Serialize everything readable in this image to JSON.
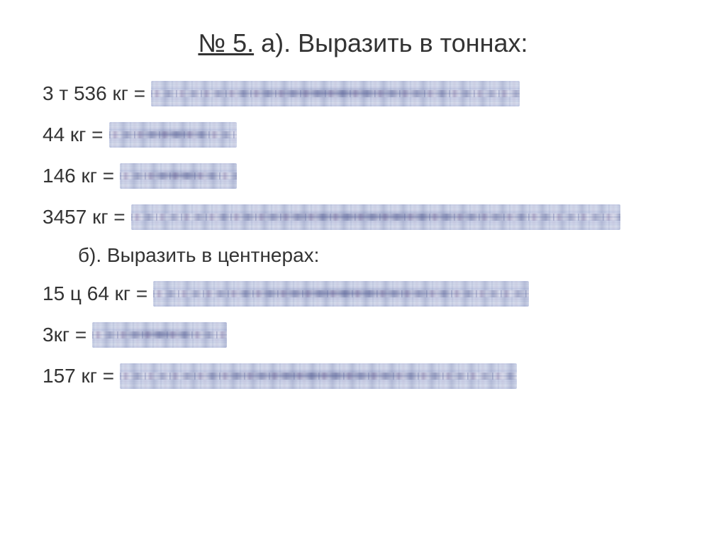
{
  "header": {
    "number": "№ 5.",
    "text": " а). Выразить в тоннах:"
  },
  "section_a": {
    "rows": [
      {
        "label": "3 т  536 кг  =",
        "blur_width": 520
      },
      {
        "label": "44 кг  =",
        "blur_width": 180
      },
      {
        "label": "146 кг  =",
        "blur_width": 165
      },
      {
        "label": "3457 кг =",
        "blur_width": 690
      }
    ]
  },
  "subtitle_b": "б). Выразить в центнерах:",
  "section_b": {
    "rows": [
      {
        "label": "15 ц 64 кг   =",
        "blur_width": 530
      },
      {
        "label": "3кг  =",
        "blur_width": 190
      },
      {
        "label": "157 кг =",
        "blur_width": 560
      }
    ]
  },
  "colors": {
    "background": "#ffffff",
    "text": "#333333",
    "blur_base": "#c8d0e8"
  },
  "fonts": {
    "header_size": 36,
    "body_size": 28
  }
}
